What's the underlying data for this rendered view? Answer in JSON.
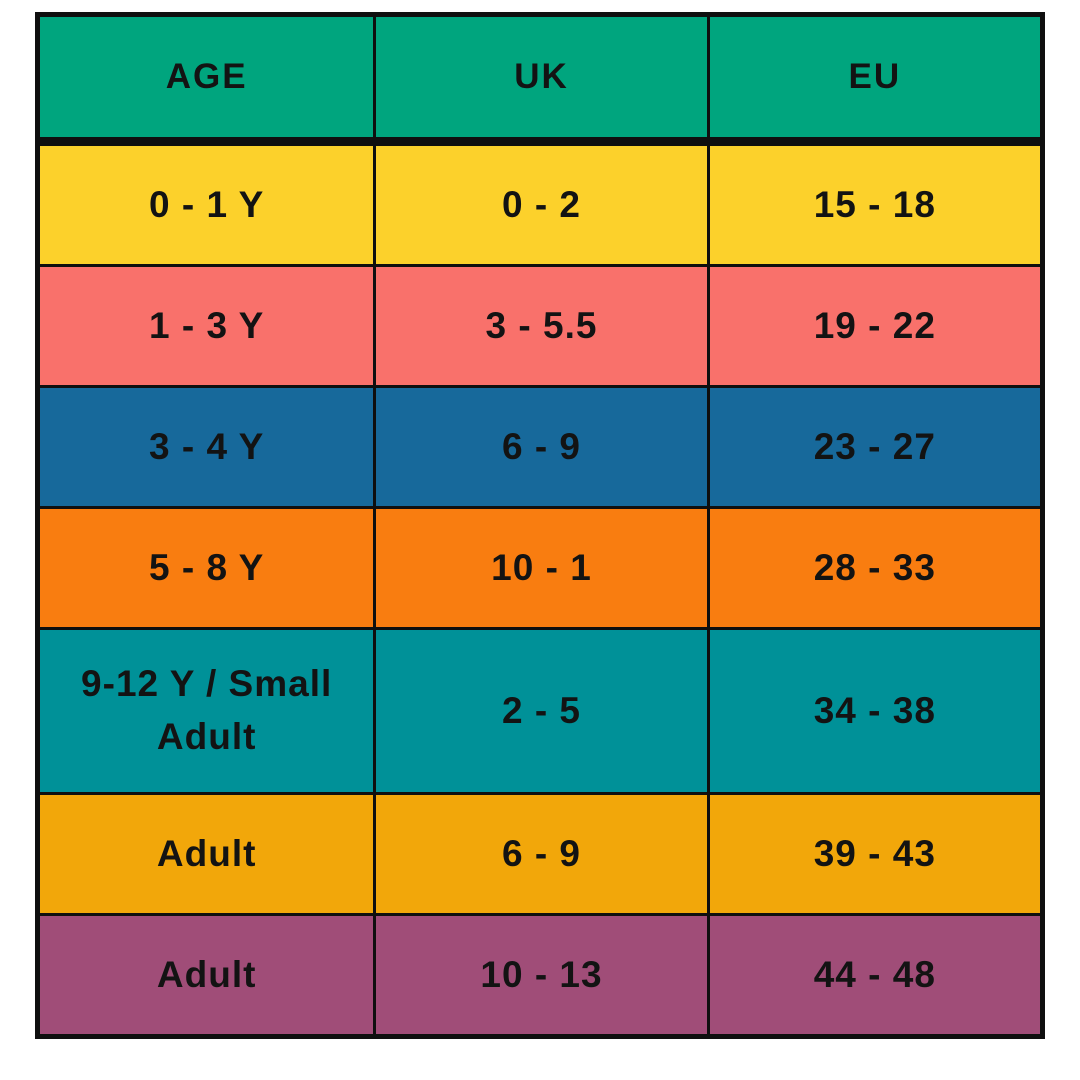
{
  "chart_data": {
    "type": "table",
    "columns": [
      "AGE",
      "UK",
      "EU"
    ],
    "rows": [
      {
        "cells": [
          "0 - 1 Y",
          "0 - 2",
          "15 - 18"
        ],
        "row_color": "#FCD12B"
      },
      {
        "cells": [
          "1 - 3 Y",
          "3 - 5.5",
          "19 - 22"
        ],
        "row_color": "#F9716B"
      },
      {
        "cells": [
          "3 - 4 Y",
          "6 - 9",
          "23 - 27"
        ],
        "row_color": "#17699B"
      },
      {
        "cells": [
          "5 - 8 Y",
          "10 - 1",
          "28 - 33"
        ],
        "row_color": "#F97D10"
      },
      {
        "cells": [
          "9-12 Y / Small Adult",
          "2 - 5",
          "34 - 38"
        ],
        "row_color": "#009198"
      },
      {
        "cells": [
          "Adult",
          "6 - 9",
          "39 - 43"
        ],
        "row_color": "#F2A70A"
      },
      {
        "cells": [
          "Adult",
          "10 - 13",
          "44 - 48"
        ],
        "row_color": "#A04D78"
      }
    ],
    "header_color": "#00A57E",
    "border_color": "#0f0f0f",
    "text_color": "#131313",
    "legend_position": "none",
    "grid": true
  }
}
